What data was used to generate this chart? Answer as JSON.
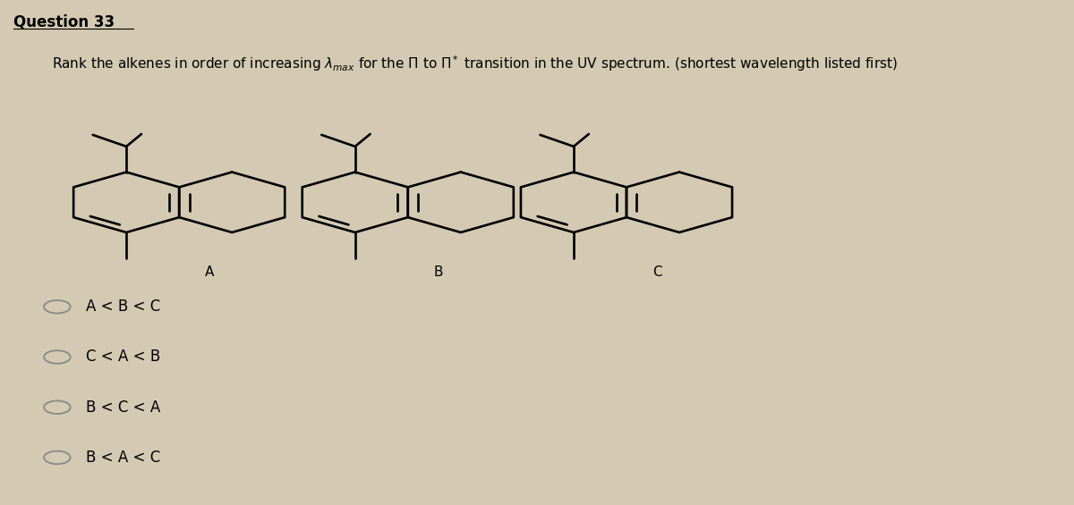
{
  "title": "Question 33",
  "question_line1": "Rank the alkenes in order of increasing λmax for the Π to Π* transition in the UV spectrum. (shortest wavelength listed first)",
  "molecule_labels": [
    "A",
    "B",
    "C"
  ],
  "answer_options": [
    "A < B < C",
    "C < A < B",
    "B < C < A",
    "B < A < C"
  ],
  "background_color": "#d4c9b2",
  "title_fontsize": 12,
  "question_fontsize": 11,
  "answer_fontsize": 12,
  "mol_label_fontsize": 11
}
